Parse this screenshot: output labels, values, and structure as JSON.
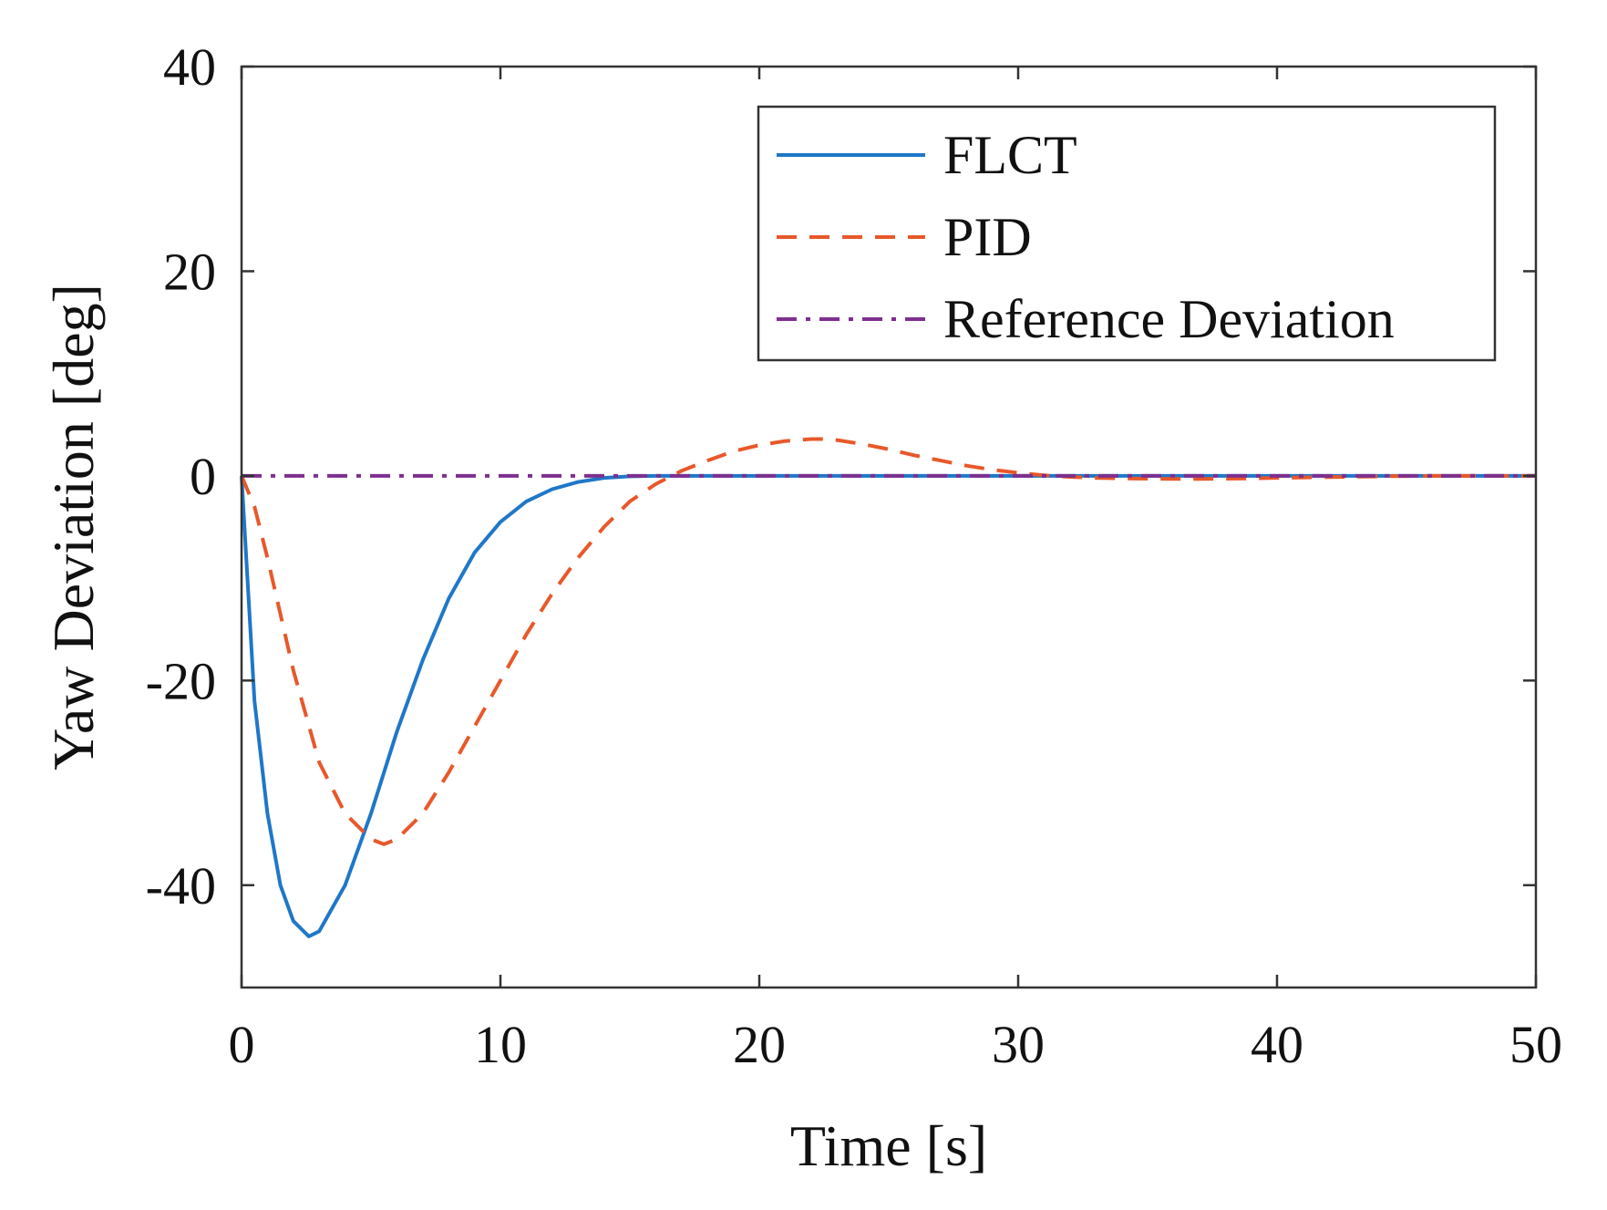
{
  "chart_data": {
    "type": "line",
    "title": "",
    "xlabel": "Time [s]",
    "ylabel": "Yaw Deviation [deg]",
    "xlim": [
      0,
      50
    ],
    "ylim": [
      -50,
      40
    ],
    "xticks": [
      "0",
      "10",
      "20",
      "30",
      "40",
      "50"
    ],
    "yticks": [
      "40",
      "20",
      "0",
      "-20",
      "-40"
    ],
    "xtick_values": [
      0,
      10,
      20,
      30,
      40,
      50
    ],
    "ytick_values": [
      40,
      20,
      0,
      -20,
      -40
    ],
    "grid": false,
    "legend_position": "top-right",
    "series": [
      {
        "name": "FLCT",
        "color": "#1f77c8",
        "style": "solid",
        "x": [
          0,
          0.5,
          1,
          1.5,
          2,
          2.6,
          3,
          4,
          5,
          6,
          7,
          8,
          9,
          10,
          11,
          12,
          13,
          14,
          15,
          16,
          17,
          18,
          20,
          25,
          30,
          35,
          40,
          45,
          50
        ],
        "y": [
          0,
          -22,
          -33,
          -40,
          -43.5,
          -45,
          -44.5,
          -40,
          -33,
          -25,
          -18,
          -12,
          -7.5,
          -4.5,
          -2.5,
          -1.3,
          -0.6,
          -0.2,
          -0.05,
          0,
          0,
          0,
          0,
          0,
          0,
          0,
          0,
          0,
          0
        ]
      },
      {
        "name": "PID",
        "color": "#e8582a",
        "style": "dashed",
        "x": [
          0,
          0.5,
          1,
          2,
          3,
          4,
          5,
          5.5,
          6,
          7,
          8,
          9,
          10,
          11,
          12,
          13,
          14,
          15,
          16,
          17,
          18,
          19,
          20,
          21,
          22,
          22.5,
          23,
          24,
          25,
          26,
          27,
          28,
          29,
          30,
          31,
          32,
          33,
          34,
          35,
          36,
          37,
          38,
          39,
          40,
          42,
          44,
          46,
          48,
          50
        ],
        "y": [
          0,
          -3,
          -8,
          -19,
          -28,
          -33,
          -35.5,
          -36,
          -35.5,
          -33,
          -29,
          -24.5,
          -20,
          -15.5,
          -11.5,
          -8,
          -5,
          -2.5,
          -0.8,
          0.5,
          1.5,
          2.4,
          3.0,
          3.4,
          3.6,
          3.6,
          3.5,
          3.1,
          2.6,
          2.0,
          1.5,
          1.0,
          0.6,
          0.3,
          0.05,
          -0.1,
          -0.2,
          -0.25,
          -0.28,
          -0.3,
          -0.3,
          -0.28,
          -0.25,
          -0.2,
          -0.12,
          -0.05,
          0,
          0,
          0
        ]
      },
      {
        "name": "Reference Deviation",
        "color": "#7e2f8e",
        "style": "dashdot",
        "x": [
          0,
          50
        ],
        "y": [
          0,
          0
        ]
      }
    ]
  }
}
